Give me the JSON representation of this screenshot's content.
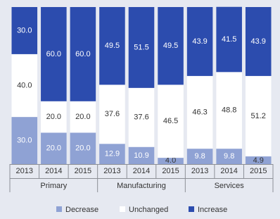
{
  "chart_data": {
    "type": "stacked-bar",
    "categories": [
      "2013",
      "2014",
      "2015",
      "2013",
      "2014",
      "2015",
      "2013",
      "2014",
      "2015"
    ],
    "groups": [
      "Primary",
      "Manufacturing",
      "Services"
    ],
    "ylim": [
      0,
      100
    ],
    "series": [
      {
        "name": "Decrease",
        "color": "#8fa2d4",
        "values": [
          30.0,
          20.0,
          20.0,
          12.9,
          10.9,
          4.0,
          9.8,
          9.8,
          4.9
        ],
        "value_labels": [
          "30.0",
          "20.0",
          "20.0",
          "12.9",
          "10.9",
          "4.0",
          "9.8",
          "9.8",
          "4.9"
        ]
      },
      {
        "name": "Unchanged",
        "color": "#ffffff",
        "values": [
          40.0,
          20.0,
          20.0,
          37.6,
          37.6,
          46.5,
          46.3,
          48.8,
          51.2
        ],
        "value_labels": [
          "40.0",
          "20.0",
          "20.0",
          "37.6",
          "37.6",
          "46.5",
          "46.3",
          "48.8",
          "51.2"
        ]
      },
      {
        "name": "Increase",
        "color": "#2c4cae",
        "values": [
          30.0,
          60.0,
          60.0,
          49.5,
          51.5,
          49.5,
          43.9,
          41.5,
          43.9
        ],
        "value_labels": [
          "30.0",
          "60.0",
          "60.0",
          "49.5",
          "51.5",
          "49.5",
          "43.9",
          "41.5",
          "43.9"
        ]
      }
    ]
  }
}
